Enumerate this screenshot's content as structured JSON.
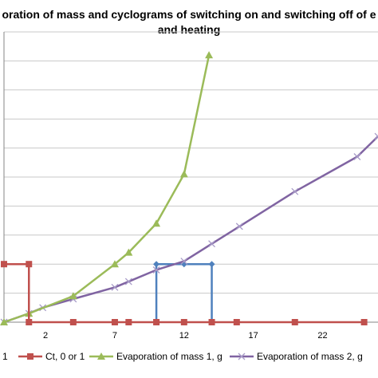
{
  "chart_data": {
    "type": "line",
    "title_lines": [
      "oration of mass and cyclograms of switching on and switching off of e",
      "and heating"
    ],
    "xlabel": "",
    "ylabel": "",
    "x_ticks": [
      "2",
      "7",
      "12",
      "17",
      "22"
    ],
    "x_tick_values": [
      2,
      7,
      12,
      17,
      22
    ],
    "xlim": [
      -1,
      26
    ],
    "ylim": [
      0,
      10
    ],
    "y_gridlines": [
      0,
      1,
      2,
      3,
      4,
      5,
      6,
      7,
      8,
      9,
      10
    ],
    "grid": true,
    "legend_position": "bottom",
    "legend": {
      "partial_entry_label": "1",
      "entries": [
        "Ct, 0 or 1",
        "Evaporation of mass 1, g",
        "Evaporation of mass 2, g"
      ]
    },
    "series": [
      {
        "name": "Ct, 0 or 1",
        "color": "#c0504d",
        "marker": "square",
        "points": [
          [
            -1,
            2
          ],
          [
            0.8,
            2
          ],
          [
            0.8,
            0
          ],
          [
            4,
            0
          ],
          [
            7,
            0
          ],
          [
            8,
            0
          ],
          [
            10,
            0
          ],
          [
            12,
            0
          ],
          [
            14,
            0
          ],
          [
            15.8,
            0
          ],
          [
            20,
            0
          ],
          [
            25,
            0
          ]
        ]
      },
      {
        "name": "Evaporation of mass 1, g",
        "color": "#9bbb59",
        "marker": "triangle",
        "points": [
          [
            -1,
            0
          ],
          [
            0.8,
            0.3
          ],
          [
            4,
            0.9
          ],
          [
            7,
            2
          ],
          [
            8,
            2.4
          ],
          [
            10,
            3.4
          ],
          [
            12,
            5.1
          ],
          [
            13.8,
            9.2
          ]
        ]
      },
      {
        "name": "Evaporation of mass 2, g",
        "color": "#8064a2",
        "marker": "x",
        "points": [
          [
            -1,
            0
          ],
          [
            0.8,
            0.3
          ],
          [
            1.8,
            0.5
          ],
          [
            4,
            0.8
          ],
          [
            7,
            1.2
          ],
          [
            8,
            1.4
          ],
          [
            10,
            1.8
          ],
          [
            12,
            2.1
          ],
          [
            14,
            2.7
          ],
          [
            16,
            3.3
          ],
          [
            20,
            4.5
          ],
          [
            24.5,
            5.7
          ],
          [
            26,
            6.4
          ]
        ]
      },
      {
        "name": "",
        "color": "#4f81bd",
        "marker": "diamond",
        "points": [
          [
            10,
            0
          ],
          [
            10,
            2
          ],
          [
            12,
            2
          ],
          [
            14,
            2
          ],
          [
            14,
            0
          ]
        ]
      }
    ]
  }
}
